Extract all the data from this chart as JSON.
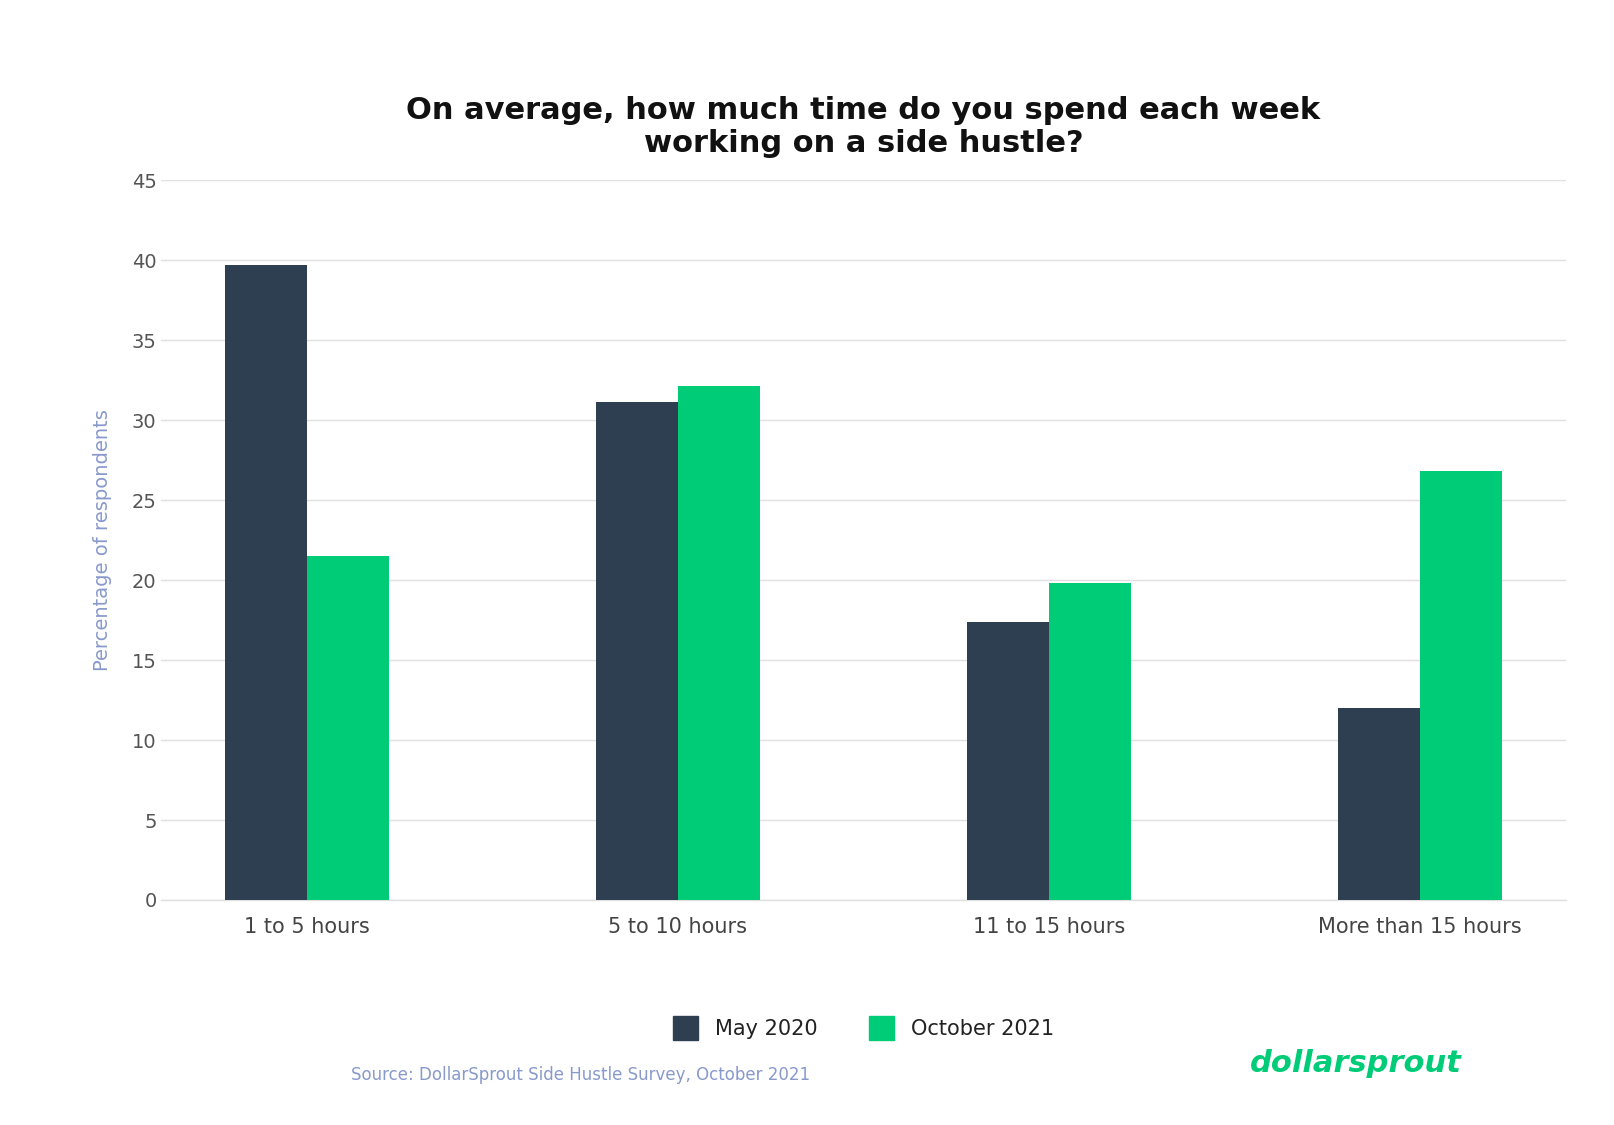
{
  "title": "On average, how much time do you spend each week\nworking on a side hustle?",
  "categories": [
    "1 to 5 hours",
    "5 to 10 hours",
    "11 to 15 hours",
    "More than 15 hours"
  ],
  "may2020": [
    39.7,
    31.1,
    17.4,
    12.0
  ],
  "oct2021": [
    21.5,
    32.1,
    19.8,
    26.8
  ],
  "color_may": "#2e3f52",
  "color_oct": "#00cc77",
  "ylabel": "Percentage of respondents",
  "ylabel_color": "#8899cc",
  "ylim": [
    0,
    45
  ],
  "yticks": [
    0,
    5,
    10,
    15,
    20,
    25,
    30,
    35,
    40,
    45
  ],
  "legend_may": "May 2020",
  "legend_oct": "October 2021",
  "source_text": "Source: DollarSprout Side Hustle Survey, October 2021",
  "source_color": "#8899cc",
  "background_color": "#ffffff",
  "title_fontsize": 22,
  "bar_width": 0.22,
  "grid_color": "#e0e0e0",
  "tick_color": "#555555",
  "xticklabel_color": "#444444"
}
